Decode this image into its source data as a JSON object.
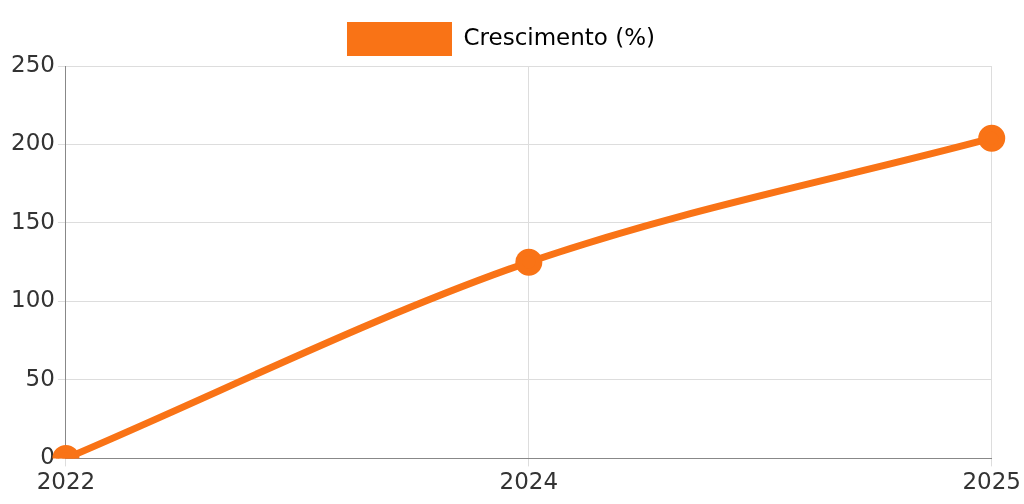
{
  "chart_data": {
    "type": "line",
    "categories": [
      "2022",
      "2024",
      "2025"
    ],
    "series": [
      {
        "name": "Crescimento (%)",
        "color": "#f97316",
        "values": [
          0,
          125,
          204
        ]
      }
    ],
    "ylim": [
      0,
      250
    ],
    "yticks": [
      0,
      50,
      100,
      150,
      200,
      250
    ],
    "grid": true,
    "legend": "top",
    "marker": "circle",
    "line_style": "solid"
  }
}
